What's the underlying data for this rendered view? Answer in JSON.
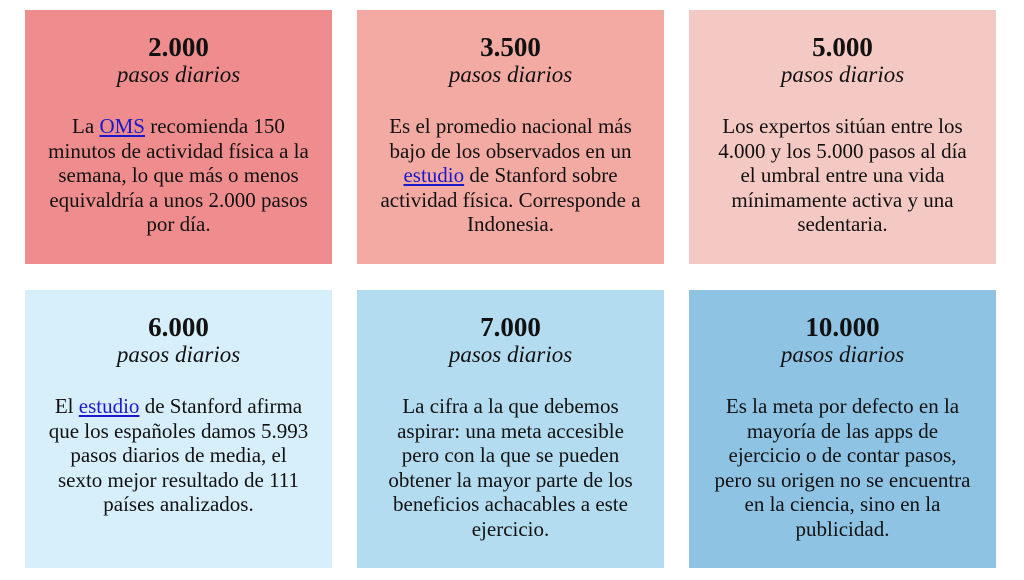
{
  "colors": [
    "#ef8d8e",
    "#f2aaa3",
    "#f5c9c3",
    "#d6effb",
    "#b3dcf0",
    "#8fc3e4"
  ],
  "cards": [
    {
      "number": "2.000",
      "unit": "pasos diarios",
      "pre": "La ",
      "link": "OMS",
      "post": " recomienda 150 minutos de actividad física a la semana, lo que más o menos equivaldría a unos 2.000 pasos por día."
    },
    {
      "number": "3.500",
      "unit": "pasos diarios",
      "pre": "Es el promedio nacional más bajo de los observados en un ",
      "link": "estudio",
      "post": " de Stanford sobre actividad física. Corresponde a Indonesia."
    },
    {
      "number": "5.000",
      "unit": "pasos diarios",
      "pre": "Los expertos sitúan entre los 4.000 y los 5.000 pasos al día el umbral entre una vida mínimamente activa y una sedentaria.",
      "link": null,
      "post": null
    },
    {
      "number": "6.000",
      "unit": "pasos diarios",
      "pre": "El ",
      "link": "estudio",
      "post": " de Stanford afirma que los españoles damos 5.993 pasos diarios de media, el sexto mejor resultado de 111 países analizados."
    },
    {
      "number": "7.000",
      "unit": "pasos diarios",
      "pre": "La cifra a la que debemos aspirar: una meta accesible pero con la que se pueden obtener la mayor parte de los beneficios achacables a este ejercicio.",
      "link": null,
      "post": null
    },
    {
      "number": "10.000",
      "unit": "pasos diarios",
      "pre": "Es la meta por defecto en la mayoría de las apps de ejercicio o de contar pasos, pero su origen no se encuentra en la ciencia, sino en la publicidad.",
      "link": null,
      "post": null
    }
  ]
}
